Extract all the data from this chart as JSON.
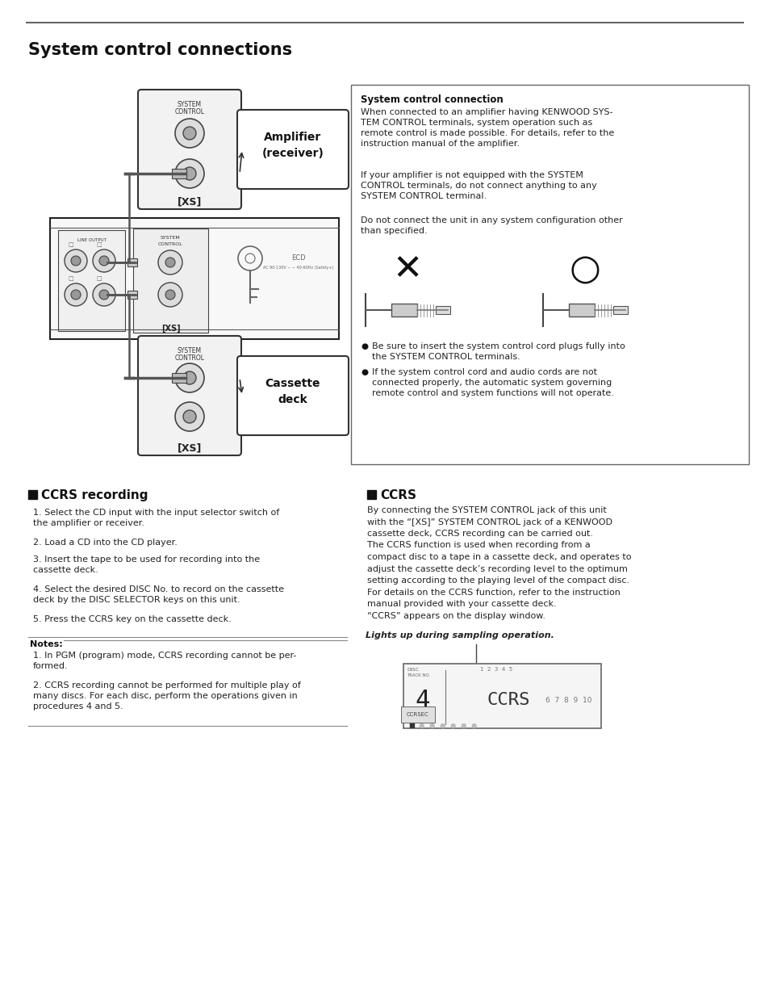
{
  "page_title": "System control connections",
  "bg_color": "#ffffff",
  "text_color": "#111111",
  "section1_title": "System control connection",
  "section1_p1": "When connected to an amplifier having KENWOOD SYS-\nTEM CONTROL terminals, system operation such as\nremote control is made possible. For details, refer to the\ninstruction manual of the amplifier.",
  "section1_p2": "If your amplifier is not equipped with the SYSTEM\nCONTROL terminals, do not connect anything to any\nSYSTEM CONTROL terminal.",
  "section1_p3": "Do not connect the unit in any system configuration other\nthan specified.",
  "bullet1": "Be sure to insert the system control cord plugs fully into\nthe SYSTEM CONTROL terminals.",
  "bullet2": "If the system control cord and audio cords are not\nconnected properly, the automatic system governing\nremote control and system functions will not operate.",
  "ccrs_rec_title": "CCRS recording",
  "ccrs_rec_steps": [
    "Select the CD input with the input selector switch of\nthe amplifier or receiver.",
    "Load a CD into the CD player.",
    "Insert the tape to be used for recording into the\ncassette deck.",
    "Select the desired DISC No. to record on the cassette\ndeck by the DISC SELECTOR keys on this unit.",
    "Press the CCRS key on the cassette deck."
  ],
  "notes_title": "Notes:",
  "notes": [
    "In PGM (program) mode, CCRS recording cannot be per-\nformed.",
    "CCRS recording cannot be performed for multiple play of\nmany discs. For each disc, perform the operations given in\nprocedures 4 and 5."
  ],
  "ccrs_title": "CCRS",
  "ccrs_body_lines": [
    "By connecting the SYSTEM CONTROL jack of this unit",
    "with the “[XS]” SYSTEM CONTROL jack of a KENWOOD",
    "cassette deck, CCRS recording can be carried out.",
    "The CCRS function is used when recording from a",
    "compact disc to a tape in a cassette deck, and operates to",
    "adjust the cassette deck’s recording level to the optimum",
    "setting according to the playing level of the compact disc.",
    "For details on the CCRS function, refer to the instruction",
    "manual provided with your cassette deck.",
    "“CCRS” appears on the display window."
  ],
  "ccrs_caption": "Lights up during sampling operation.",
  "amplifier_label": "Amplifier\n(receiver)",
  "cassette_label": "Cassette\ndeck",
  "system_control": "SYSTEM\nCONTROL",
  "xs_label": "[XS]"
}
